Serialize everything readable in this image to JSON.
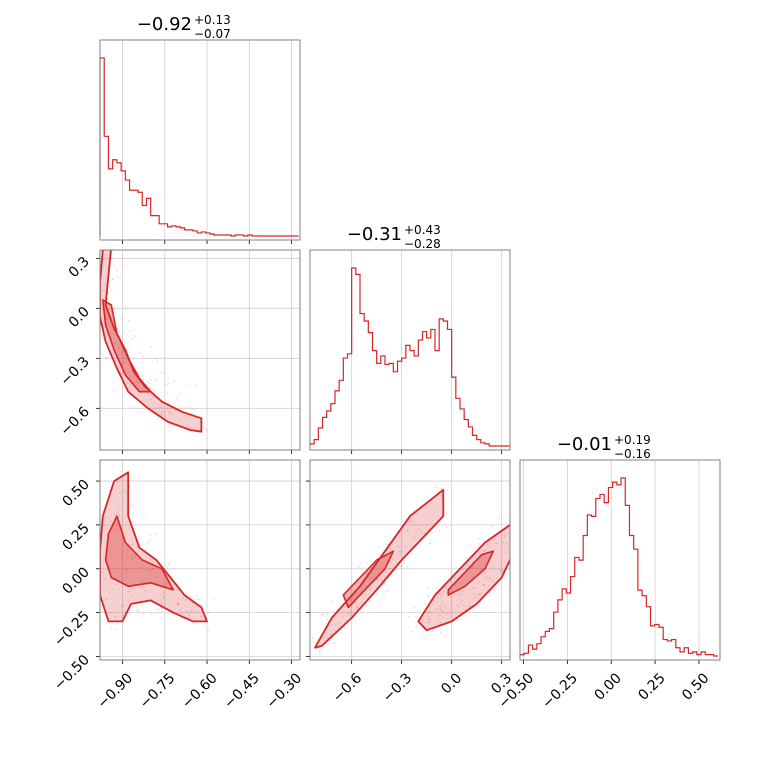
{
  "chart_data": {
    "type": "corner",
    "accent_color": "#d62728",
    "grid": true,
    "parameters": [
      {
        "median": "−0.92",
        "plus": "+0.13",
        "minus": "−0.07",
        "range": [
          -0.98,
          -0.27
        ]
      },
      {
        "median": "−0.31",
        "plus": "+0.43",
        "minus": "−0.28",
        "range": [
          -0.85,
          0.35
        ]
      },
      {
        "median": "−0.01",
        "plus": "+0.19",
        "minus": "−0.16",
        "range": [
          -0.52,
          0.62
        ]
      }
    ],
    "ticks": {
      "p0_x": [
        {
          "v": -0.9,
          "label": "−0.90"
        },
        {
          "v": -0.75,
          "label": "−0.75"
        },
        {
          "v": -0.6,
          "label": "−0.60"
        },
        {
          "v": -0.45,
          "label": "−0.45"
        },
        {
          "v": -0.3,
          "label": "−0.30"
        }
      ],
      "p1_x": [
        {
          "v": -0.6,
          "label": "−0.6"
        },
        {
          "v": -0.3,
          "label": "−0.3"
        },
        {
          "v": 0.0,
          "label": "0.0"
        },
        {
          "v": 0.3,
          "label": "0.3"
        }
      ],
      "p2_x": [
        {
          "v": -0.5,
          "label": "−0.50"
        },
        {
          "v": -0.25,
          "label": "−0.25"
        },
        {
          "v": 0.0,
          "label": "0.00"
        },
        {
          "v": 0.25,
          "label": "0.25"
        },
        {
          "v": 0.5,
          "label": "0.50"
        }
      ],
      "p1_y": [
        {
          "v": 0.3,
          "label": "0.3"
        },
        {
          "v": 0.0,
          "label": "0.0"
        },
        {
          "v": -0.3,
          "label": "−0.3"
        },
        {
          "v": -0.6,
          "label": "−0.6"
        }
      ],
      "p2_y": [
        {
          "v": 0.5,
          "label": "0.50"
        },
        {
          "v": 0.25,
          "label": "0.25"
        },
        {
          "v": 0.0,
          "label": "0.00"
        },
        {
          "v": -0.25,
          "label": "−0.25"
        },
        {
          "v": -0.5,
          "label": "−0.50"
        }
      ]
    },
    "histograms": [
      {
        "param": 0,
        "bin_edges": [
          -0.98,
          -0.965,
          -0.95,
          -0.935,
          -0.92,
          -0.905,
          -0.89,
          -0.875,
          -0.86,
          -0.845,
          -0.83,
          -0.815,
          -0.8,
          -0.785,
          -0.77,
          -0.755,
          -0.74,
          -0.725,
          -0.71,
          -0.695,
          -0.68,
          -0.665,
          -0.65,
          -0.635,
          -0.62,
          -0.605,
          -0.59,
          -0.575,
          -0.56,
          -0.545,
          -0.53,
          -0.515,
          -0.5,
          -0.485,
          -0.47,
          -0.455,
          -0.44,
          -0.425,
          -0.41,
          -0.395,
          -0.38,
          -0.365,
          -0.35,
          -0.335,
          -0.32,
          -0.305,
          -0.29,
          -0.275
        ],
        "counts": [
          175,
          98,
          66,
          75,
          72,
          64,
          55,
          45,
          45,
          43,
          30,
          37,
          20,
          20,
          12,
          12,
          9,
          10,
          9,
          8,
          6,
          6,
          5,
          3,
          4,
          3,
          2,
          1,
          1,
          1,
          1,
          0,
          1,
          1,
          0,
          1,
          0,
          0,
          0,
          0,
          0,
          0,
          0,
          0,
          0,
          0,
          0
        ]
      },
      {
        "param": 1,
        "bin_edges": [
          -0.85,
          -0.825,
          -0.8,
          -0.775,
          -0.75,
          -0.725,
          -0.7,
          -0.675,
          -0.65,
          -0.625,
          -0.6,
          -0.575,
          -0.55,
          -0.525,
          -0.5,
          -0.475,
          -0.45,
          -0.425,
          -0.4,
          -0.375,
          -0.35,
          -0.325,
          -0.3,
          -0.275,
          -0.25,
          -0.225,
          -0.2,
          -0.175,
          -0.15,
          -0.125,
          -0.1,
          -0.075,
          -0.05,
          -0.025,
          0.0,
          0.025,
          0.05,
          0.075,
          0.1,
          0.125,
          0.15,
          0.175,
          0.2,
          0.225,
          0.25,
          0.275,
          0.3,
          0.325,
          0.35
        ],
        "counts": [
          2,
          6,
          17,
          27,
          33,
          40,
          52,
          62,
          83,
          87,
          168,
          162,
          125,
          118,
          107,
          90,
          78,
          85,
          77,
          78,
          70,
          80,
          83,
          95,
          90,
          85,
          100,
          108,
          102,
          110,
          90,
          120,
          118,
          110,
          65,
          45,
          35,
          25,
          18,
          10,
          6,
          3,
          2,
          0,
          0,
          0,
          0,
          0
        ]
      },
      {
        "param": 2,
        "bin_edges": [
          -0.52,
          -0.496,
          -0.472,
          -0.448,
          -0.424,
          -0.4,
          -0.376,
          -0.352,
          -0.328,
          -0.304,
          -0.28,
          -0.256,
          -0.232,
          -0.208,
          -0.184,
          -0.16,
          -0.136,
          -0.112,
          -0.088,
          -0.064,
          -0.04,
          -0.016,
          0.008,
          0.032,
          0.056,
          0.08,
          0.104,
          0.128,
          0.152,
          0.176,
          0.2,
          0.224,
          0.248,
          0.272,
          0.296,
          0.32,
          0.344,
          0.368,
          0.392,
          0.416,
          0.44,
          0.464,
          0.488,
          0.512,
          0.536,
          0.56,
          0.584,
          0.608
        ],
        "counts": [
          1,
          2,
          8,
          5,
          9,
          14,
          18,
          20,
          32,
          41,
          49,
          46,
          58,
          72,
          70,
          88,
          103,
          102,
          115,
          118,
          112,
          123,
          127,
          125,
          130,
          110,
          88,
          78,
          48,
          44,
          36,
          22,
          23,
          21,
          12,
          11,
          12,
          6,
          3,
          6,
          2,
          3,
          1,
          3,
          1,
          1,
          0
        ]
      }
    ],
    "contours": [
      {
        "pair": "p1_vs_p0",
        "outer": [
          [
            -0.97,
            0.35
          ],
          [
            -0.94,
            0.37
          ],
          [
            -0.95,
            0.2
          ],
          [
            -0.96,
            0.02
          ],
          [
            -0.93,
            -0.12
          ],
          [
            -0.89,
            -0.25
          ],
          [
            -0.86,
            -0.38
          ],
          [
            -0.82,
            -0.47
          ],
          [
            -0.76,
            -0.56
          ],
          [
            -0.69,
            -0.62
          ],
          [
            -0.62,
            -0.66
          ],
          [
            -0.62,
            -0.74
          ],
          [
            -0.66,
            -0.73
          ],
          [
            -0.74,
            -0.68
          ],
          [
            -0.81,
            -0.6
          ],
          [
            -0.88,
            -0.5
          ],
          [
            -0.92,
            -0.36
          ],
          [
            -0.96,
            -0.2
          ],
          [
            -0.98,
            -0.05
          ],
          [
            -0.98,
            0.15
          ],
          [
            -0.97,
            0.35
          ]
        ],
        "inner": [
          [
            -0.97,
            0.05
          ],
          [
            -0.94,
            0.02
          ],
          [
            -0.92,
            -0.15
          ],
          [
            -0.88,
            -0.3
          ],
          [
            -0.84,
            -0.42
          ],
          [
            -0.8,
            -0.5
          ],
          [
            -0.84,
            -0.5
          ],
          [
            -0.89,
            -0.4
          ],
          [
            -0.93,
            -0.25
          ],
          [
            -0.96,
            -0.1
          ],
          [
            -0.97,
            0.05
          ]
        ]
      },
      {
        "pair": "p2_vs_p0",
        "outer": [
          [
            -0.93,
            0.5
          ],
          [
            -0.88,
            0.55
          ],
          [
            -0.88,
            0.3
          ],
          [
            -0.84,
            0.12
          ],
          [
            -0.78,
            0.05
          ],
          [
            -0.73,
            -0.05
          ],
          [
            -0.68,
            -0.15
          ],
          [
            -0.62,
            -0.22
          ],
          [
            -0.6,
            -0.3
          ],
          [
            -0.65,
            -0.3
          ],
          [
            -0.72,
            -0.25
          ],
          [
            -0.8,
            -0.18
          ],
          [
            -0.87,
            -0.2
          ],
          [
            -0.9,
            -0.3
          ],
          [
            -0.95,
            -0.3
          ],
          [
            -0.98,
            -0.15
          ],
          [
            -0.98,
            0.1
          ],
          [
            -0.97,
            0.3
          ],
          [
            -0.93,
            0.5
          ]
        ],
        "inner": [
          [
            -0.95,
            0.2
          ],
          [
            -0.92,
            0.3
          ],
          [
            -0.89,
            0.15
          ],
          [
            -0.83,
            0.05
          ],
          [
            -0.76,
            0.0
          ],
          [
            -0.72,
            -0.12
          ],
          [
            -0.8,
            -0.08
          ],
          [
            -0.88,
            -0.1
          ],
          [
            -0.94,
            -0.05
          ],
          [
            -0.96,
            0.05
          ],
          [
            -0.95,
            0.2
          ]
        ]
      },
      {
        "pair": "p2_vs_p1_upper",
        "outer": [
          [
            -0.82,
            -0.45
          ],
          [
            -0.72,
            -0.28
          ],
          [
            -0.55,
            -0.1
          ],
          [
            -0.4,
            0.1
          ],
          [
            -0.25,
            0.3
          ],
          [
            -0.05,
            0.45
          ],
          [
            -0.05,
            0.3
          ],
          [
            -0.15,
            0.2
          ],
          [
            -0.3,
            0.05
          ],
          [
            -0.45,
            -0.12
          ],
          [
            -0.6,
            -0.28
          ],
          [
            -0.78,
            -0.44
          ],
          [
            -0.82,
            -0.45
          ]
        ],
        "inner": [
          [
            -0.65,
            -0.15
          ],
          [
            -0.55,
            -0.05
          ],
          [
            -0.45,
            0.05
          ],
          [
            -0.35,
            0.1
          ],
          [
            -0.4,
            0.0
          ],
          [
            -0.5,
            -0.1
          ],
          [
            -0.62,
            -0.22
          ],
          [
            -0.65,
            -0.15
          ]
        ]
      },
      {
        "pair": "p2_vs_p1_lower",
        "outer": [
          [
            -0.2,
            -0.3
          ],
          [
            -0.1,
            -0.15
          ],
          [
            0.05,
            0.0
          ],
          [
            0.2,
            0.15
          ],
          [
            0.35,
            0.25
          ],
          [
            0.4,
            0.15
          ],
          [
            0.3,
            -0.05
          ],
          [
            0.15,
            -0.2
          ],
          [
            0.0,
            -0.3
          ],
          [
            -0.15,
            -0.35
          ],
          [
            -0.2,
            -0.3
          ]
        ],
        "inner": [
          [
            -0.02,
            -0.12
          ],
          [
            0.08,
            -0.02
          ],
          [
            0.18,
            0.08
          ],
          [
            0.25,
            0.1
          ],
          [
            0.2,
            0.0
          ],
          [
            0.08,
            -0.1
          ],
          [
            -0.02,
            -0.15
          ],
          [
            -0.02,
            -0.12
          ]
        ]
      }
    ]
  }
}
